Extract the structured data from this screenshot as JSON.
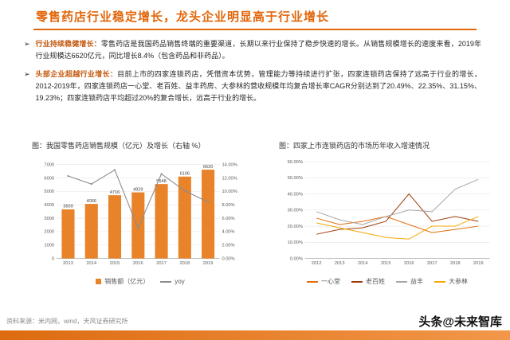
{
  "title": "零售药店行业稳定增长，龙头企业明显高于行业增长",
  "bullet_marker": "➢",
  "bullets": [
    {
      "lead": "行业持续稳健增长：",
      "text": "零售药店是我国药品销售终端的重要渠道，长期以来行业保持了稳步快速的增长。从销售规模增长的速度来看，2019年行业规模达6620亿元，同比增长8.4%（包含药品和非药品）。"
    },
    {
      "lead": "头部企业超越行业增长：",
      "text": "目前上市的四家连锁药店，凭借资本优势，管理能力等持续进行扩张，四家连锁药店保持了远高于行业的增长，2012-2019年，四家连锁药店一心堂、老百姓、益丰药房、大参林的营收规模年均复合增长率CAGR分别达到了20.49%、22.35%、31.15%、19.23%；四家连锁药店平均超过20%的复合增长，远高于行业的增长。"
    }
  ],
  "source": "资料来源：米内网，wind，天风证券研究所",
  "watermark": "头条@未来智库",
  "colors": {
    "accent": "#E2660A",
    "bar": "#E8832A",
    "yoy_line": "#8C8C8C"
  },
  "chart_data": [
    {
      "type": "bar",
      "title": "图：我国零售药店销售规模（亿元）及增长（右轴 %）",
      "categories": [
        "2013",
        "2014",
        "2015",
        "2016",
        "2017",
        "2018",
        "2019"
      ],
      "bar_series": {
        "name": "销售额（亿元）",
        "color": "#E8832A",
        "values": [
          3659,
          4066,
          4716,
          4929,
          5548,
          6106,
          6620
        ]
      },
      "line_series": {
        "name": "yoy",
        "color": "#8C8C8C",
        "values": [
          12.3,
          11.1,
          13.2,
          4.5,
          12.6,
          10.1,
          8.4
        ]
      },
      "y_left": {
        "min": 0,
        "max": 7000,
        "step": 1000
      },
      "y_right": {
        "min": 0,
        "max": 14,
        "step": 2,
        "format": "percent2"
      },
      "legend_position": "bottom",
      "grid": true
    },
    {
      "type": "line",
      "title": "图：四家上市连锁药店的市场历年收入增速情况",
      "categories": [
        "2012",
        "2013",
        "2014",
        "2015",
        "2016",
        "2017",
        "2018",
        "2019"
      ],
      "series": [
        {
          "name": "一心堂",
          "color": "#E46C0A",
          "values": [
            25,
            21,
            23,
            26,
            21,
            16,
            18,
            20
          ]
        },
        {
          "name": "老百姓",
          "color": "#9E3B0B",
          "values": [
            15,
            18,
            19,
            23,
            40,
            23,
            26,
            23
          ]
        },
        {
          "name": "益丰",
          "color": "#A6A6A6",
          "values": [
            29,
            24,
            21,
            26,
            30,
            29,
            43,
            49
          ]
        },
        {
          "name": "大参林",
          "color": "#F2A900",
          "values": [
            22,
            19,
            16,
            13,
            12,
            20,
            20,
            26
          ]
        }
      ],
      "y": {
        "min": 0,
        "max": 60,
        "step": 10,
        "format": "percent2"
      },
      "legend_position": "bottom",
      "grid": true
    }
  ]
}
